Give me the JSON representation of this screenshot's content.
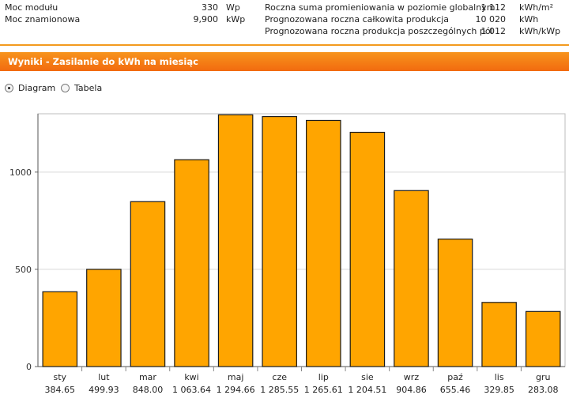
{
  "summary": {
    "left": [
      {
        "label": "Moc modułu",
        "value": "330",
        "unit": "Wp"
      },
      {
        "label": "Moc znamionowa",
        "value": "9,900",
        "unit": "kWp"
      }
    ],
    "right": [
      {
        "label": "Roczna suma promieniowania w poziomie globalnym",
        "value": "1 112",
        "unit": "kWh/m²"
      },
      {
        "label": "Prognozowana roczna całkowita produkcja",
        "value": "10 020",
        "unit": "kWh"
      },
      {
        "label": "Prognozowana roczna produkcja poszczególnych pól",
        "value": "1 012",
        "unit": "kWh/kWp"
      }
    ]
  },
  "section_title": "Wyniki - Zasilanie do kWh na miesiąc",
  "view_options": {
    "diagram_label": "Diagram",
    "table_label": "Tabela",
    "selected": "Diagram"
  },
  "colors": {
    "bar_fill": "#ffa500",
    "bar_stroke": "#1a1a1a",
    "header_orange": "#f58220",
    "grid": "#d9d9d9"
  },
  "chart_data": {
    "type": "bar",
    "categories": [
      "sty",
      "lut",
      "mar",
      "kwi",
      "maj",
      "cze",
      "lip",
      "sie",
      "wrz",
      "paź",
      "lis",
      "gru"
    ],
    "values": [
      384.65,
      499.93,
      848.0,
      1063.64,
      1294.66,
      1285.55,
      1265.61,
      1204.51,
      904.86,
      655.46,
      329.85,
      283.08
    ],
    "value_labels": [
      "384.65",
      "499.93",
      "848.00",
      "1 063.64",
      "1 294.66",
      "1 285.55",
      "1 265.61",
      "1 204.51",
      "904.86",
      "655.46",
      "329.85",
      "283.08"
    ],
    "yticks": [
      0,
      500,
      1000
    ],
    "ylim": [
      0,
      1300
    ],
    "grid": true,
    "title": "",
    "xlabel": "",
    "ylabel": ""
  }
}
